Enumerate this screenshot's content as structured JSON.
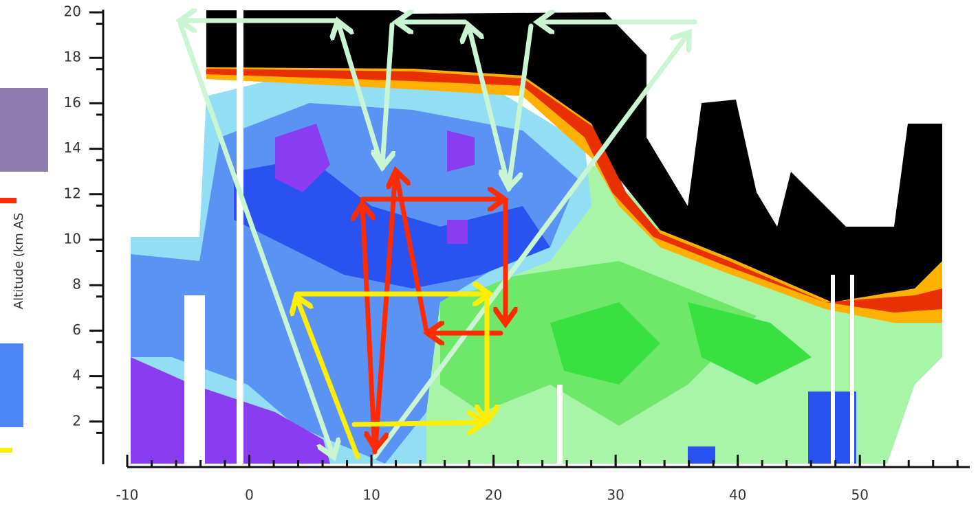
{
  "plot": {
    "ylabel": "Altitude (km AS",
    "xlim": [
      -10,
      59
    ],
    "ylim": [
      0,
      20
    ],
    "xticks": [
      -10,
      0,
      10,
      20,
      30,
      40,
      50
    ],
    "yticks": [
      2,
      4,
      6,
      8,
      10,
      12,
      14,
      16,
      18,
      20
    ]
  }
}
